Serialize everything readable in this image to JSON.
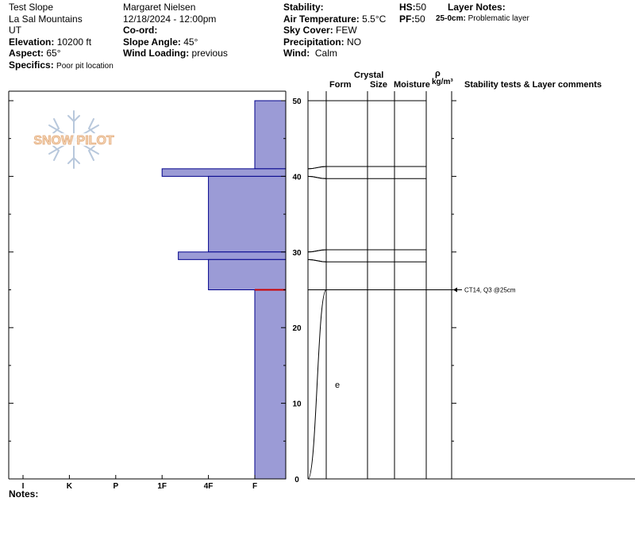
{
  "header": {
    "pit_name": "Test Slope",
    "location": "La Sal Mountains",
    "state": "UT",
    "elevation_label": "Elevation:",
    "elevation_value": "10200 ft",
    "aspect_label": "Aspect:",
    "aspect_value": "65°",
    "specifics_label": "Specifics:",
    "specifics_value": "Poor pit location",
    "observer": "Margaret Nielsen",
    "datetime": "12/18/2024 - 12:00pm",
    "coord_label": "Co-ord:",
    "slope_label": "Slope Angle:",
    "slope_value": "45°",
    "wind_loading_label": "Wind Loading:",
    "wind_loading_value": "previous",
    "stability_label": "Stability:",
    "air_temp_label": "Air Temperature:",
    "air_temp_value": "5.5°C",
    "sky_label": "Sky Cover:",
    "sky_value": "FEW",
    "precip_label": "Precipitation:",
    "precip_value": "NO",
    "wind_label": "Wind:",
    "wind_value": "Calm",
    "hs_label": "HS:",
    "hs_value": "50",
    "pf_label": "PF:",
    "pf_value": "50",
    "layer_notes_label": "Layer Notes:",
    "layer_note": "25-0cm:",
    "layer_note_text": "Problematic layer"
  },
  "notes_label": "Notes:",
  "logo_text": "SNOW PILOT",
  "columns": {
    "crystal": "Crystal",
    "form": "Form",
    "size": "Size",
    "moisture": "Moisture",
    "rho": "ρ",
    "density_unit": "kg/m³",
    "stability": "Stability tests & Layer comments"
  },
  "chart_data": {
    "type": "snow-profile",
    "hardness_scale": [
      "I",
      "K",
      "P",
      "1F",
      "4F",
      "F"
    ],
    "height_ticks": [
      0,
      10,
      20,
      30,
      40,
      50
    ],
    "height_range": [
      0,
      50
    ],
    "hardness_layers": [
      {
        "top": 50,
        "bottom": 41,
        "hardness_index": 5.0
      },
      {
        "top": 41,
        "bottom": 40,
        "hardness_index": 3.0
      },
      {
        "top": 40,
        "bottom": 30,
        "hardness_index": 4.0
      },
      {
        "top": 30,
        "bottom": 29,
        "hardness_index": 3.35
      },
      {
        "top": 29,
        "bottom": 25,
        "hardness_index": 4.0
      },
      {
        "top": 25,
        "bottom": 0,
        "hardness_index": 5.0
      }
    ],
    "problem_layer_height": 25,
    "layer_boundaries": [
      50,
      41.3,
      39.7,
      30.3,
      28.7,
      25
    ],
    "grain_symbol": {
      "height": 12.5,
      "symbol": "e"
    },
    "stability_tests": [
      {
        "height": 25,
        "text": "CT14, Q3 @25cm"
      }
    ],
    "colors": {
      "fill": "#9b9bd6",
      "edge": "#00008b",
      "problem": "#cc0000"
    }
  }
}
